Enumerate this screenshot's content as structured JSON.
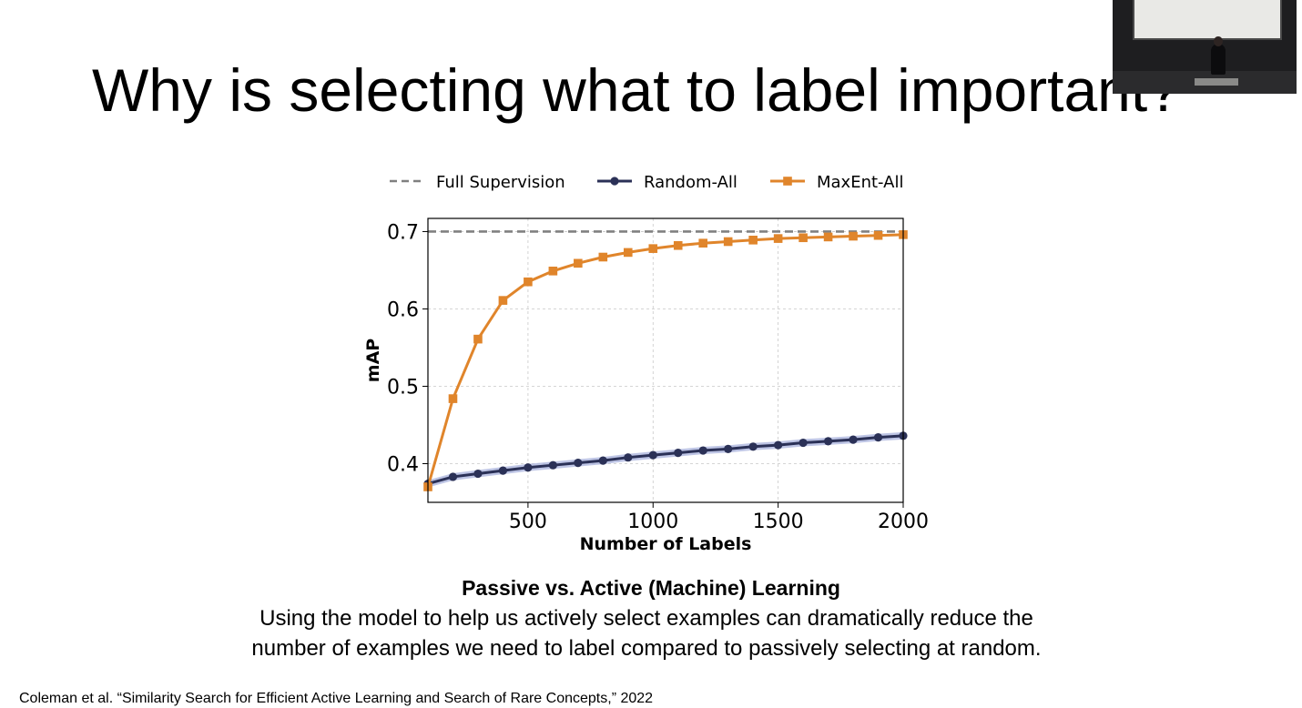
{
  "slide": {
    "title": "Why is selecting what to label important?",
    "caption_title": "Passive vs. Active (Machine) Learning",
    "caption_line1": "Using the model to help us actively select examples can dramatically reduce the",
    "caption_line2": "number of examples we need to label compared to passively selecting at random.",
    "citation": "Coleman et al. “Similarity Search for Efficient Active Learning and Search of Rare Concepts,” 2022"
  },
  "chart_data": {
    "type": "line",
    "xlabel": "Number of Labels",
    "ylabel": "mAP",
    "xlim": [
      100,
      2000
    ],
    "ylim": [
      0.35,
      0.717
    ],
    "xticks": [
      500,
      1000,
      1500,
      2000
    ],
    "yticks": [
      0.4,
      0.5,
      0.6,
      0.7
    ],
    "grid": true,
    "legend_position": "top",
    "x": [
      100,
      200,
      300,
      400,
      500,
      600,
      700,
      800,
      900,
      1000,
      1100,
      1200,
      1300,
      1400,
      1500,
      1600,
      1700,
      1800,
      1900,
      2000
    ],
    "reference_line": {
      "name": "Full Supervision",
      "value": 0.7,
      "color": "#808080",
      "style": "dashed"
    },
    "series": [
      {
        "name": "Random-All",
        "color": "#2b3157",
        "marker": "circle",
        "values": [
          0.374,
          0.383,
          0.387,
          0.391,
          0.395,
          0.398,
          0.401,
          0.404,
          0.408,
          0.411,
          0.414,
          0.417,
          0.419,
          0.422,
          0.424,
          0.427,
          0.429,
          0.431,
          0.434,
          0.436
        ]
      },
      {
        "name": "MaxEnt-All",
        "color": "#e0852b",
        "marker": "square",
        "values": [
          0.37,
          0.484,
          0.561,
          0.611,
          0.635,
          0.649,
          0.659,
          0.667,
          0.673,
          0.678,
          0.682,
          0.685,
          0.687,
          0.689,
          0.691,
          0.692,
          0.693,
          0.694,
          0.695,
          0.696
        ]
      }
    ]
  },
  "colors": {
    "band": "#aeb6de",
    "grid": "#c8c8c8"
  },
  "icons": {
    "webcam": "presenter-webcam-thumbnail"
  }
}
